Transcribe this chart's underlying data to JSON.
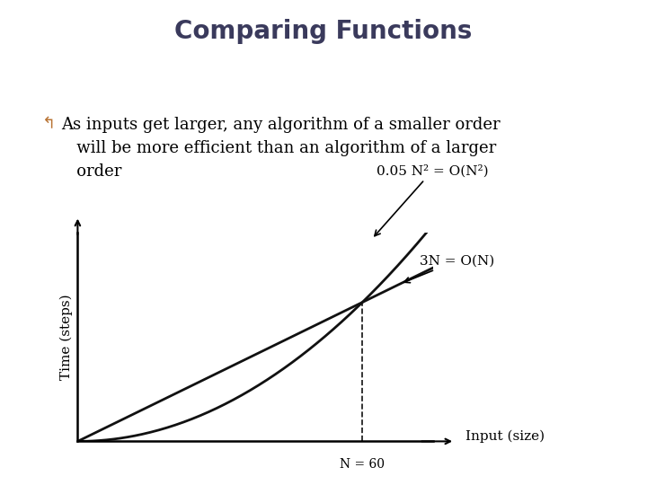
{
  "title": "Comparing Functions",
  "title_fontsize": 20,
  "title_fontweight": "bold",
  "title_color": "#3a3a5c",
  "bg_color": "#e8e8e8",
  "bullet_symbol": "↰",
  "bullet_color": "#b87333",
  "bullet_text": "As inputs get larger, any algorithm of a smaller order\n   will be more efficient than an algorithm of a larger\n   order",
  "text_fontsize": 13,
  "xlabel": "Input (size)",
  "ylabel": "Time (steps)",
  "label_fontsize": 11,
  "n_intersect": 60,
  "n_max": 75,
  "y_max_factor": 1.5,
  "annotation_n2": "0.05 N² = O(N²)",
  "annotation_n": "3N = O(N)",
  "annotation_fontsize": 11,
  "line_color": "#111111",
  "dashed_color": "#111111"
}
